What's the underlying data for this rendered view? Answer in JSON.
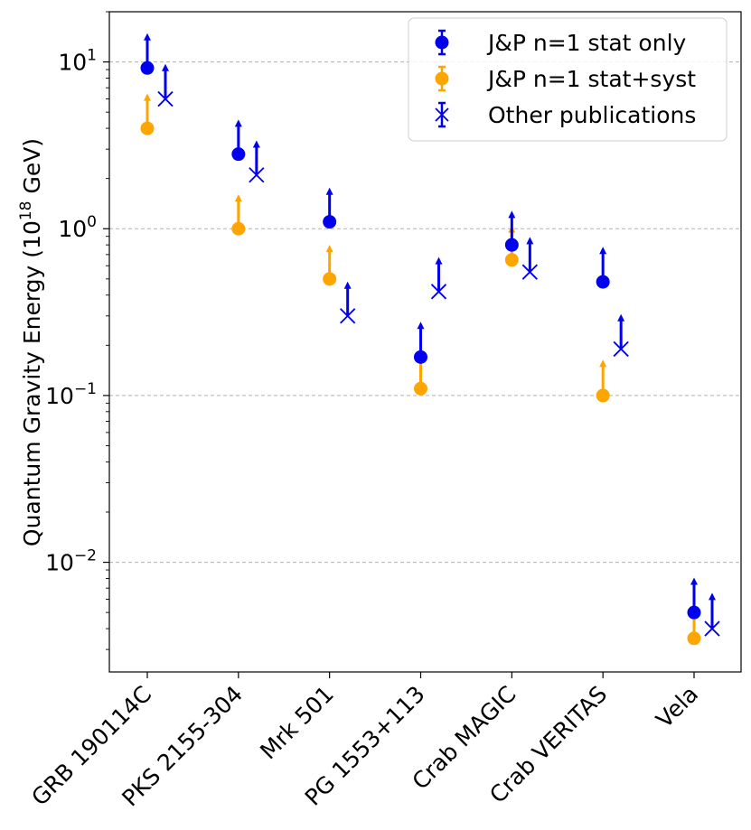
{
  "chart_data": {
    "type": "scatter",
    "yscale": "log",
    "ylim": [
      0.0022,
      20
    ],
    "ylabel_main": "Quantum Gravity Energy (10",
    "ylabel_exp": "18",
    "ylabel_tail": " GeV)",
    "categories": [
      "GRB 190114C",
      "PKS 2155-304",
      "Mrk 501",
      "PG 1553+113",
      "Crab MAGIC",
      "Crab VERITAS",
      "Vela"
    ],
    "yticks": [
      {
        "value": 0.01,
        "base": "10",
        "exp": "−2"
      },
      {
        "value": 0.1,
        "base": "10",
        "exp": "−1"
      },
      {
        "value": 1,
        "base": "10",
        "exp": "0"
      },
      {
        "value": 10,
        "base": "10",
        "exp": "1"
      }
    ],
    "grid": true,
    "legend_position": "top-right",
    "series": [
      {
        "name": "J&P n=1 stat only",
        "color": "#0000ee",
        "marker": "circle",
        "offset": 0,
        "values": [
          9.2,
          2.8,
          1.1,
          0.17,
          0.8,
          0.48,
          0.005
        ],
        "upper": [
          14.5,
          4.4,
          1.72,
          0.27,
          1.25,
          0.76,
          0.0079
        ]
      },
      {
        "name": "J&P n=1 stat+syst",
        "color": "#ffa500",
        "marker": "circle",
        "offset": 0,
        "values": [
          4.0,
          1.0,
          0.5,
          0.11,
          0.65,
          0.1,
          0.0035
        ],
        "upper": [
          6.3,
          1.57,
          0.78,
          0.17,
          1.02,
          0.16,
          0.0055
        ]
      },
      {
        "name": "Other publications",
        "color": "#0000ee",
        "marker": "x",
        "offset": 1,
        "values": [
          6.0,
          2.1,
          0.3,
          0.42,
          0.55,
          0.19,
          0.004
        ],
        "upper": [
          9.5,
          3.3,
          0.47,
          0.66,
          0.87,
          0.3,
          0.0064
        ]
      }
    ]
  }
}
